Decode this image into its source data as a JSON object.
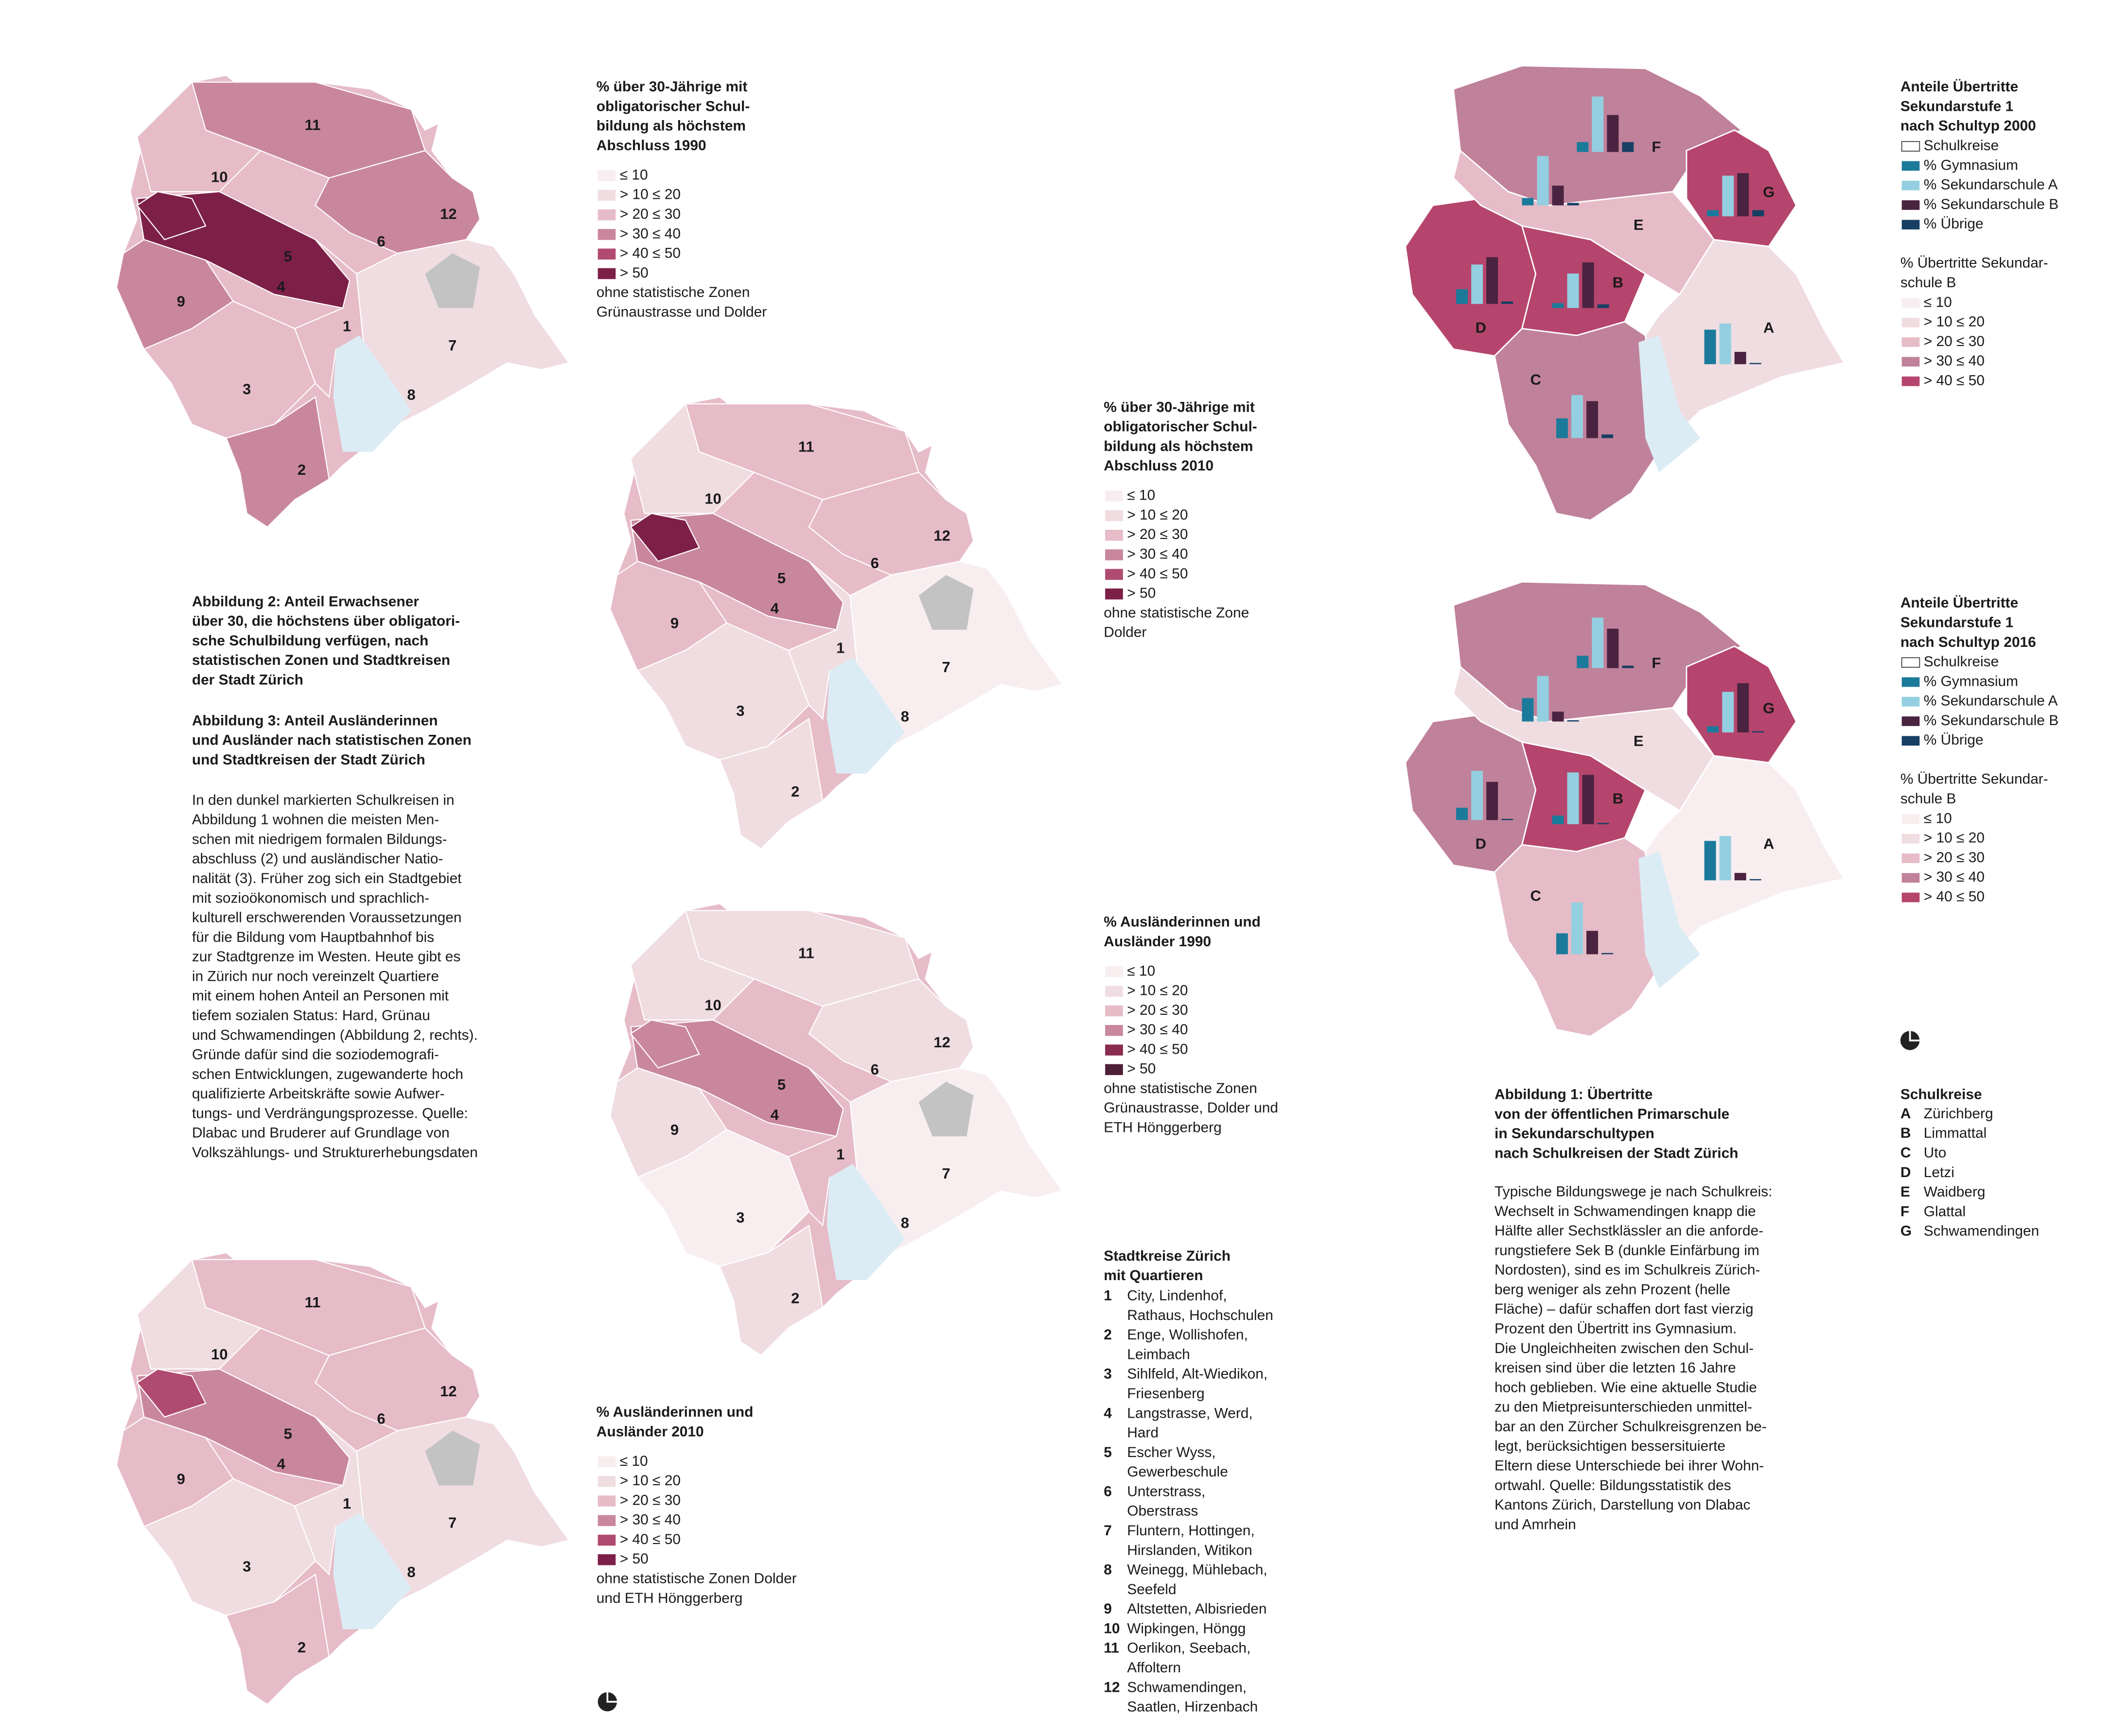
{
  "zone_maps": [
    {
      "title": [
        "% über 30-Jährige mit",
        "obligatorischer Schul-",
        "bildung als höchstem",
        "Abschluss 1990"
      ],
      "legend": [
        {
          "label": "≤ 10",
          "color": "#f8eef0"
        },
        {
          "label": "> 10 ≤ 20",
          "color": "#f0dde1"
        },
        {
          "label": "> 20 ≤ 30",
          "color": "#e6bcc8"
        },
        {
          "label": "> 30 ≤ 40",
          "color": "#c9879e"
        },
        {
          "label": "> 40 ≤ 50",
          "color": "#b04a70"
        },
        {
          "label": "> 50",
          "color": "#7d2048"
        }
      ],
      "note": [
        "ohne statistische Zonen",
        "Grünaustrasse und Dolder"
      ]
    },
    {
      "title": [
        "% über 30-Jährige mit",
        "obligatorischer Schul-",
        "bildung als höchstem",
        "Abschluss 2010"
      ],
      "legend": [
        {
          "label": "≤ 10",
          "color": "#f8eef0"
        },
        {
          "label": "> 10 ≤ 20",
          "color": "#f0dde1"
        },
        {
          "label": "> 20 ≤ 30",
          "color": "#e6bcc8"
        },
        {
          "label": "> 30 ≤ 40",
          "color": "#c9879e"
        },
        {
          "label": "> 40 ≤ 50",
          "color": "#b04a70"
        },
        {
          "label": "> 50",
          "color": "#7d2048"
        }
      ],
      "note": [
        "ohne statistische Zone",
        "Dolder"
      ]
    },
    {
      "title": [
        "% Ausländerinnen und",
        "Ausländer 1990"
      ],
      "legend": [
        {
          "label": "≤ 10",
          "color": "#f8eef0"
        },
        {
          "label": "> 10 ≤ 20",
          "color": "#f0dde1"
        },
        {
          "label": "> 20 ≤ 30",
          "color": "#e6bcc8"
        },
        {
          "label": "> 30 ≤ 40",
          "color": "#c9879e"
        },
        {
          "label": "> 40 ≤ 50",
          "color": "#8a2b50"
        },
        {
          "label": "> 50",
          "color": "#4e2038"
        }
      ],
      "note": [
        "ohne statistische Zonen",
        "Grünaustrasse, Dolder und",
        "ETH Hönggerberg"
      ]
    },
    {
      "title": [
        "% Ausländerinnen und",
        "Ausländer 2010"
      ],
      "legend": [
        {
          "label": "≤ 10",
          "color": "#f8eef0"
        },
        {
          "label": "> 10 ≤ 20",
          "color": "#f0dde1"
        },
        {
          "label": "> 20 ≤ 30",
          "color": "#e6bcc8"
        },
        {
          "label": "> 30 ≤ 40",
          "color": "#c9879e"
        },
        {
          "label": "> 40 ≤ 50",
          "color": "#b04a70"
        },
        {
          "label": "> 50",
          "color": "#7d2048"
        }
      ],
      "note": [
        "ohne statistische Zonen Dolder",
        "und ETH Hönggerberg"
      ]
    }
  ],
  "district_numbers": [
    "11",
    "10",
    "12",
    "6",
    "5",
    "4",
    "9",
    "1",
    "7",
    "3",
    "8",
    "2"
  ],
  "school_maps": [
    {
      "title": [
        "Anteile Übertritte",
        "Sekundarstufe 1",
        "nach Schultyp 2000"
      ],
      "schulkreise_label": "Schulkreise",
      "categories": [
        "A",
        "B",
        "C",
        "D",
        "E",
        "F",
        "G"
      ],
      "district_colors": [
        "#f0dde1",
        "#b5456d",
        "#c0819a",
        "#b5456d",
        "#e6bcc8",
        "#c0819a",
        "#b5456d"
      ],
      "series": [
        {
          "name": "% Gymnasium",
          "color": "#1b7a9a",
          "values": [
            28,
            4,
            16,
            12,
            6,
            8,
            5
          ]
        },
        {
          "name": "% Sekundarschule A",
          "color": "#93cfe0",
          "values": [
            33,
            28,
            35,
            32,
            40,
            45,
            33
          ]
        },
        {
          "name": "% Sekundarschule B",
          "color": "#4a2340",
          "values": [
            10,
            37,
            30,
            38,
            16,
            30,
            35
          ]
        },
        {
          "name": "% Übrige",
          "color": "#173f63",
          "values": [
            1,
            3,
            3,
            2,
            2,
            8,
            5
          ]
        }
      ],
      "scale_title": [
        "%  Übertritte Sekundar-",
        "schule B"
      ],
      "scale": [
        {
          "label": "≤ 10",
          "color": "#f8eef0"
        },
        {
          "label": "> 10  ≤ 20",
          "color": "#f0dde1"
        },
        {
          "label": "> 20 ≤ 30",
          "color": "#e6bcc8"
        },
        {
          "label": "> 30 ≤ 40",
          "color": "#c0819a"
        },
        {
          "label": "> 40 ≤ 50",
          "color": "#b5456d"
        }
      ]
    },
    {
      "title": [
        "Anteile Übertritte",
        "Sekundarstufe 1",
        "nach Schultyp 2016"
      ],
      "schulkreise_label": "Schulkreise",
      "categories": [
        "A",
        "B",
        "C",
        "D",
        "E",
        "F",
        "G"
      ],
      "district_colors": [
        "#f8eef0",
        "#b5456d",
        "#e6bcc8",
        "#c0819a",
        "#f0dde1",
        "#c0819a",
        "#b5456d"
      ],
      "series": [
        {
          "name": "% Gymnasium",
          "color": "#1b7a9a",
          "values": [
            32,
            7,
            17,
            10,
            19,
            10,
            5
          ]
        },
        {
          "name": "% Sekundarschule A",
          "color": "#93cfe0",
          "values": [
            36,
            42,
            42,
            40,
            37,
            41,
            33
          ]
        },
        {
          "name": "% Sekundarschule B",
          "color": "#4a2340",
          "values": [
            6,
            40,
            19,
            31,
            8,
            32,
            40
          ]
        },
        {
          "name": "% Übrige",
          "color": "#173f63",
          "values": [
            1,
            1,
            1,
            1,
            1,
            2,
            1
          ]
        }
      ],
      "scale_title": [
        "%  Übertritte Sekundar-",
        "schule B"
      ],
      "scale": [
        {
          "label": "≤ 10",
          "color": "#f8eef0"
        },
        {
          "label": "> 10  ≤ 20",
          "color": "#f0dde1"
        },
        {
          "label": "> 20 ≤ 30",
          "color": "#e6bcc8"
        },
        {
          "label": "> 30 ≤ 40",
          "color": "#c0819a"
        },
        {
          "label": "> 40 ≤ 50",
          "color": "#b5456d"
        }
      ]
    }
  ],
  "text_left": {
    "abb2": [
      "Abbildung 2: Anteil Erwachsener",
      "über 30, die höchstens über obligatori-",
      "sche Schulbildung verfügen, nach",
      "statistischen Zonen und Stadtkreisen",
      "der Stadt Zürich"
    ],
    "abb3": [
      "Abbildung 3: Anteil Ausländerinnen",
      "und Ausländer nach statistischen Zonen",
      "und Stadtkreisen der Stadt Zürich"
    ],
    "body": [
      "In den dunkel markierten Schulkreisen in",
      "Abbildung 1 wohnen die meisten Men-",
      "schen mit niedrigem formalen Bildungs-",
      "abschluss (2) und ausländischer Natio-",
      "nalität (3). Früher zog sich ein Stadtgebiet",
      "mit sozioökonomisch und sprachlich-",
      "kulturell erschwerenden Voraussetzungen",
      "für die Bildung vom Hauptbahnhof bis",
      "zur Stadtgrenze im Westen. Heute gibt es",
      "in Zürich nur noch vereinzelt Quartiere",
      "mit einem hohen Anteil an Personen mit",
      "tiefem sozialen Status: Hard, Grünau",
      "und Schwamendingen (Abbildung 2, rechts).",
      "Gründe dafür sind die soziodemografi-",
      "schen Entwicklungen, zugewanderte hoch",
      "qualifizierte Arbeitskräfte sowie Aufwer-",
      "tungs- und Verdrängungsprozesse. Quelle:",
      "Dlabac und Bruderer auf Grundlage von",
      "Volkszählungs- und Strukturerhebungsdaten"
    ]
  },
  "stadtkreise": {
    "title": [
      "Stadtkreise Zürich",
      "mit Quartieren"
    ],
    "items": [
      {
        "number": "1",
        "lines": [
          "City, Lindenhof,",
          "Rathaus, Hochschulen"
        ]
      },
      {
        "number": "2",
        "lines": [
          "Enge, Wollishofen,",
          "Leimbach"
        ]
      },
      {
        "number": "3",
        "lines": [
          "Sihlfeld, Alt-Wiedikon,",
          "Friesenberg"
        ]
      },
      {
        "number": "4",
        "lines": [
          "Langstrasse, Werd,",
          "Hard"
        ]
      },
      {
        "number": "5",
        "lines": [
          "Escher Wyss,",
          "Gewerbeschule"
        ]
      },
      {
        "number": "6",
        "lines": [
          "Unterstrass,",
          "Oberstrass"
        ]
      },
      {
        "number": "7",
        "lines": [
          "Fluntern, Hottingen,",
          "Hirslanden, Witikon"
        ]
      },
      {
        "number": "8",
        "lines": [
          "Weinegg, Mühlebach,",
          "Seefeld"
        ]
      },
      {
        "number": "9",
        "lines": [
          "Altstetten, Albisrieden"
        ]
      },
      {
        "number": "10",
        "lines": [
          "Wipkingen, Höngg"
        ]
      },
      {
        "number": "11",
        "lines": [
          "Oerlikon, Seebach,",
          "Affoltern"
        ]
      },
      {
        "number": "12",
        "lines": [
          "Schwamendingen,",
          "Saatlen, Hirzenbach"
        ]
      }
    ]
  },
  "abb1": {
    "caption": [
      "Abbildung 1: Übertritte",
      "von der öffentlichen Primarschule",
      "in Sekundarschultypen",
      "nach Schulkreisen der Stadt Zürich"
    ],
    "body": [
      "Typische Bildungswege je nach Schulkreis:",
      "Wechselt in Schwamendingen knapp die",
      "Hälfte aller Sechstklässler an die anforde-",
      "rungstiefere Sek B (dunkle Einfärbung im",
      "Nordosten), sind es im Schulkreis Zürich-",
      "berg weniger als zehn Prozent (helle",
      "Fläche) – dafür schaffen dort fast vierzig",
      "Prozent den Übertritt ins Gymnasium.",
      "Die Ungleichheiten zwischen den Schul-",
      "kreisen sind über die letzten 16 Jahre",
      "hoch geblieben. Wie eine aktuelle Studie",
      "zu den Mietpreisunterschieden unmittel-",
      "bar an den Zürcher Schulkreisgrenzen be-",
      "legt, berücksichtigen bessersituierte",
      "Eltern diese Unterschiede bei ihrer Wohn-",
      "ortwahl. Quelle: Bildungsstatistik des",
      "Kantons Zürich, Darstellung von Dlabac",
      "und Amrhein"
    ]
  },
  "schulkreise": {
    "title": "Schulkreise",
    "items": [
      {
        "letter": "A",
        "name": "Zürichberg"
      },
      {
        "letter": "B",
        "name": "Limmattal"
      },
      {
        "letter": "C",
        "name": "Uto"
      },
      {
        "letter": "D",
        "name": "Letzi"
      },
      {
        "letter": "E",
        "name": "Waidberg"
      },
      {
        "letter": "F",
        "name": "Glattal"
      },
      {
        "letter": "G",
        "name": "Schwamendingen"
      }
    ]
  }
}
